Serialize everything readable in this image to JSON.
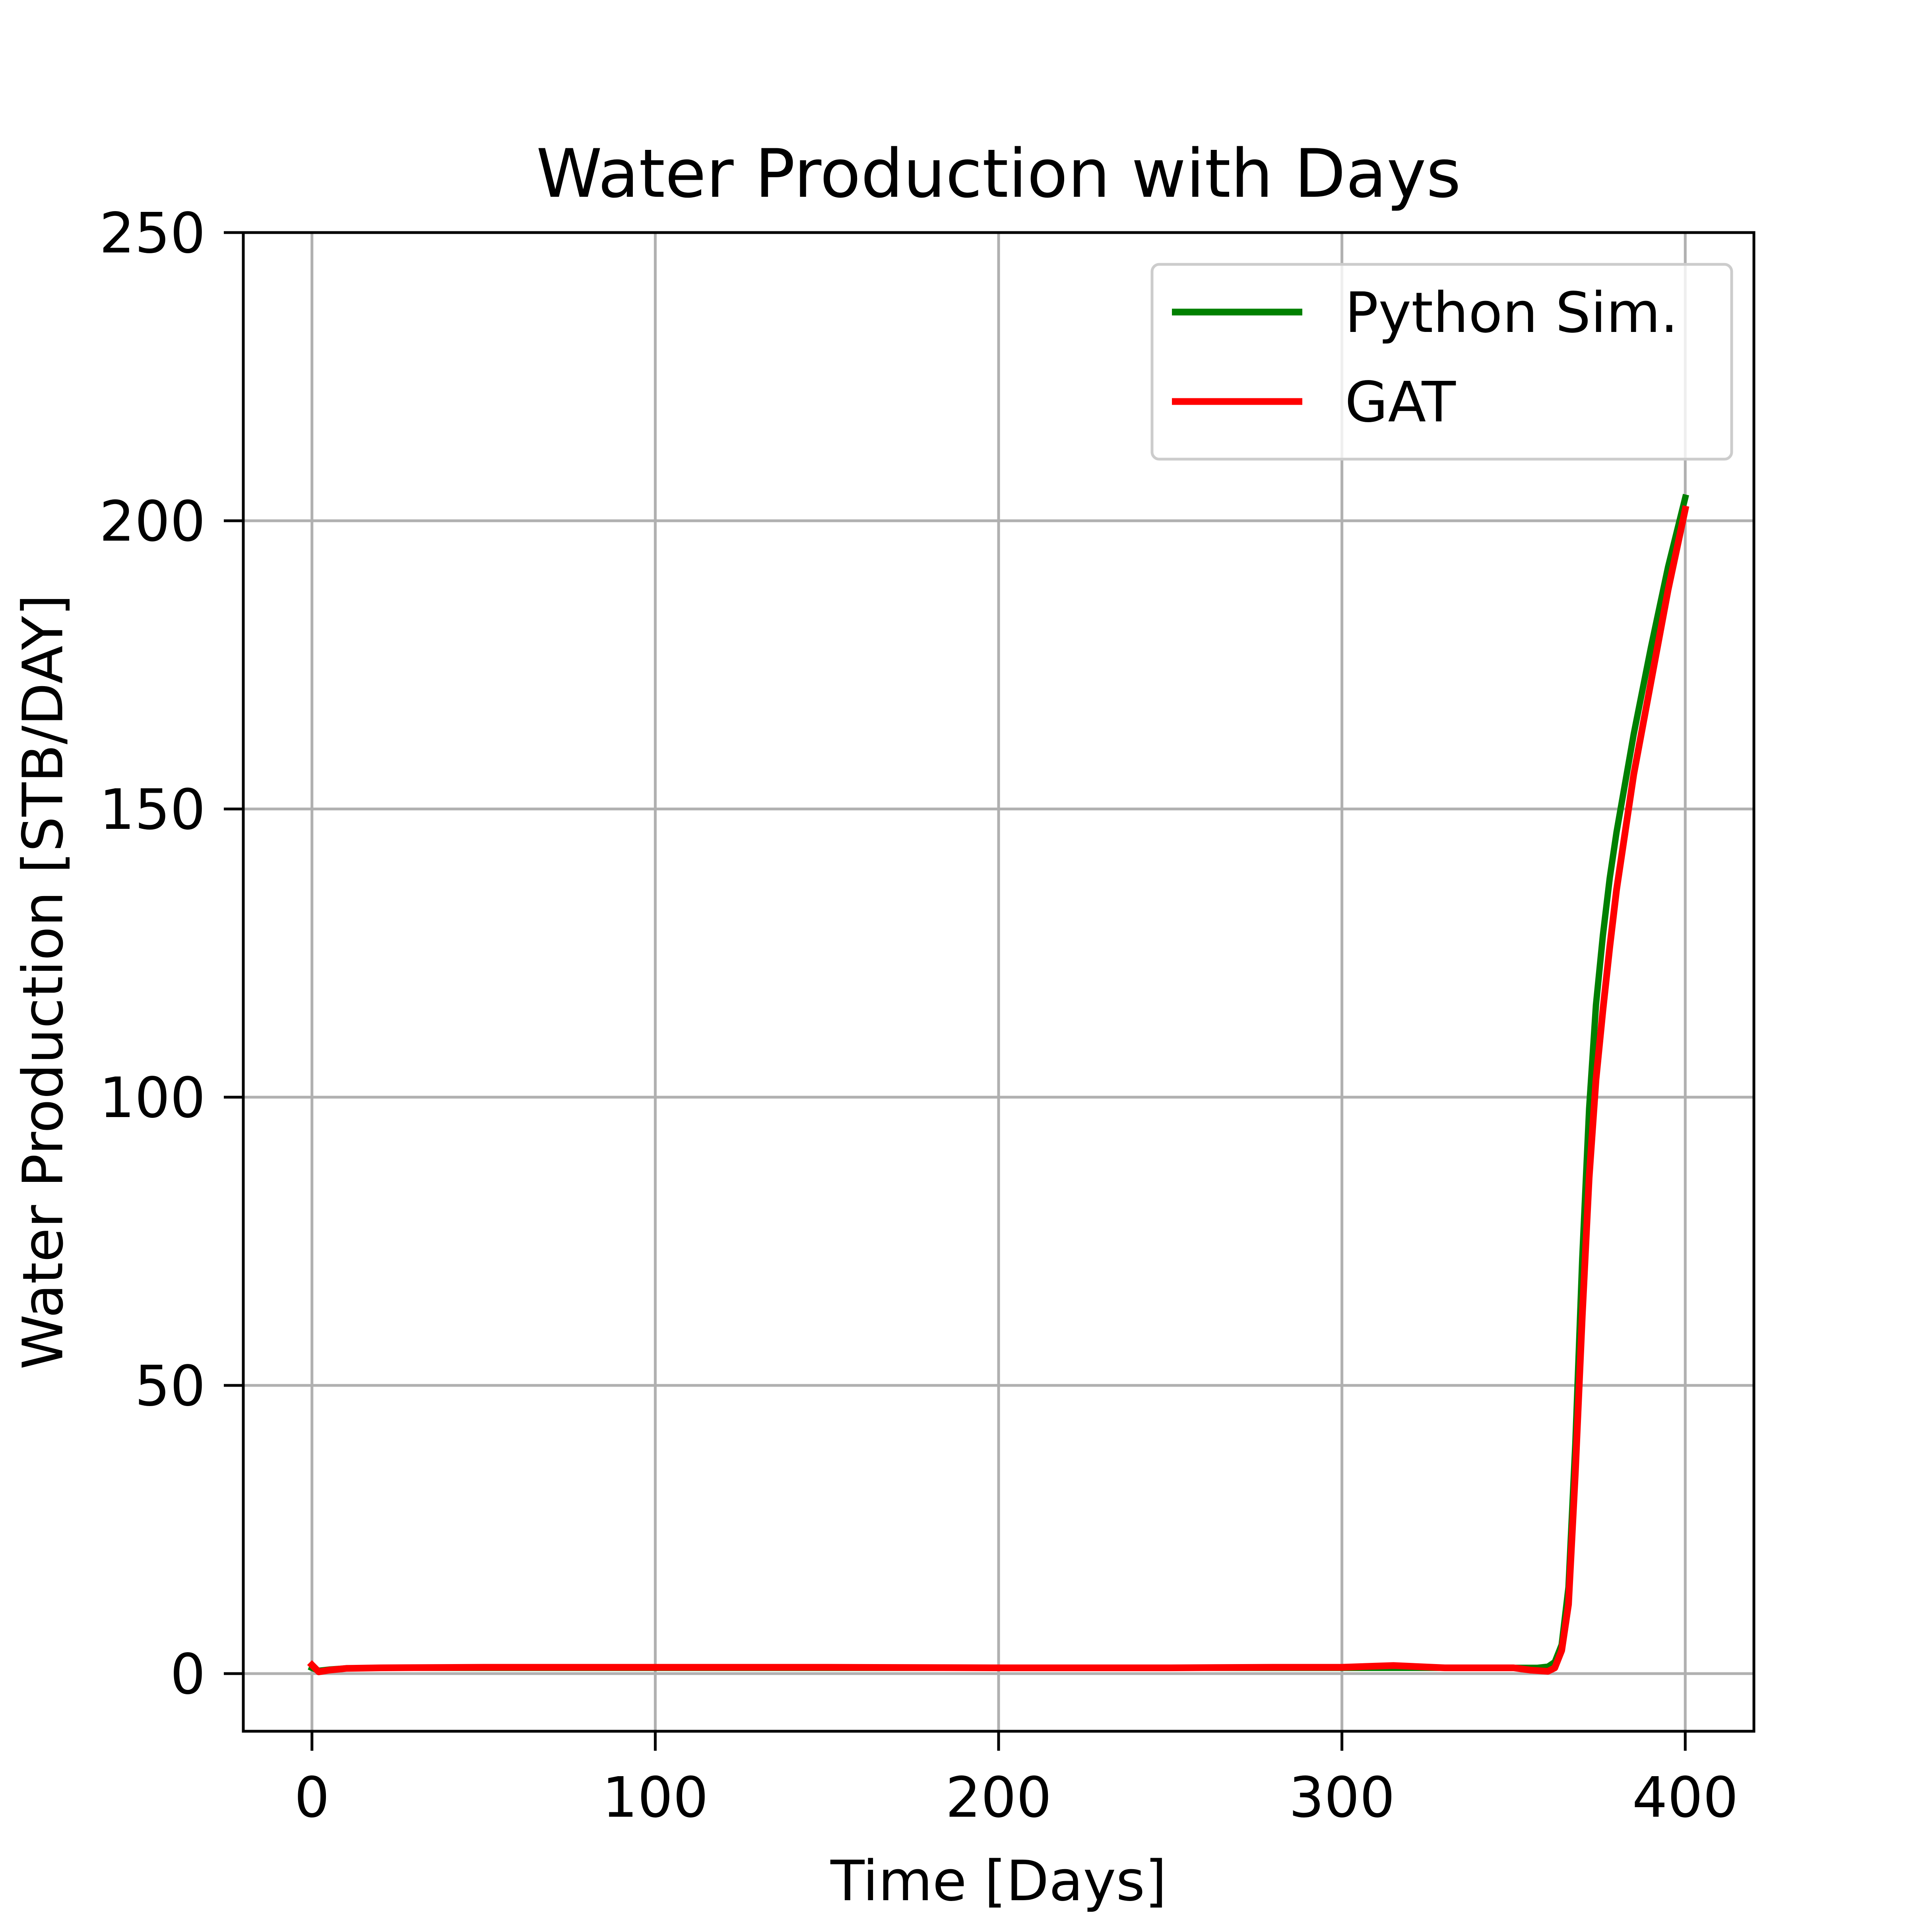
{
  "chart_data": {
    "type": "line",
    "title": "Water Production with Days",
    "xlabel": "Time [Days]",
    "ylabel": "Water Production [STB/DAY]",
    "xlim": [
      -20,
      420
    ],
    "ylim": [
      -10,
      250
    ],
    "xticks": [
      0,
      100,
      200,
      300,
      400
    ],
    "yticks": [
      0,
      50,
      100,
      150,
      200,
      250
    ],
    "grid": true,
    "legend_position": "top-right",
    "series": [
      {
        "name": "Python Sim.",
        "color": "#008000",
        "x": [
          0,
          2,
          5,
          10,
          20,
          50,
          100,
          150,
          200,
          250,
          300,
          330,
          350,
          357,
          360,
          362,
          364,
          366,
          368,
          370,
          372,
          374,
          376,
          378,
          380,
          385,
          390,
          395,
          400
        ],
        "y": [
          1,
          0.5,
          0.7,
          0.9,
          1,
          1,
          1,
          1,
          1,
          1,
          1,
          1,
          1,
          1,
          1.2,
          2,
          5,
          15,
          40,
          72,
          98,
          116,
          128,
          138,
          146,
          163,
          178,
          192,
          204
        ]
      },
      {
        "name": "GAT",
        "color": "#ff0000",
        "x": [
          0,
          2,
          5,
          10,
          20,
          50,
          100,
          150,
          200,
          250,
          280,
          300,
          315,
          330,
          350,
          355,
          360,
          362,
          364,
          366,
          368,
          370,
          372,
          374,
          376,
          378,
          380,
          385,
          390,
          395,
          400
        ],
        "y": [
          1.5,
          0.3,
          0.6,
          0.9,
          1,
          1.1,
          1.1,
          1.1,
          1,
          1,
          1.1,
          1.1,
          1.4,
          1,
          1,
          0.6,
          0.4,
          1,
          4,
          12,
          35,
          62,
          86,
          103,
          115,
          126,
          136,
          156,
          172,
          188,
          202
        ]
      }
    ]
  }
}
